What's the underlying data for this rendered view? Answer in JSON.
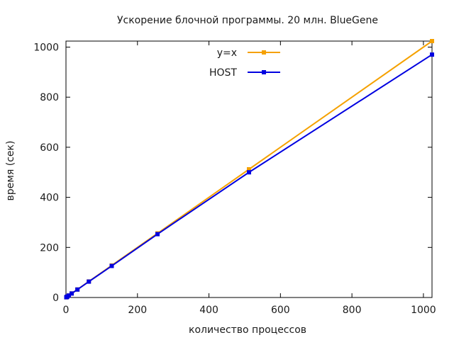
{
  "chart_data": {
    "type": "line",
    "title": "Ускорение блочной программы. 20 млн. BlueGene",
    "xlabel": "количество процессов",
    "ylabel": "время (сек)",
    "xlim": [
      0,
      1024
    ],
    "ylim": [
      0,
      1024
    ],
    "x_ticks": [
      0,
      200,
      400,
      600,
      800,
      1000
    ],
    "y_ticks": [
      0,
      200,
      400,
      600,
      800,
      1000
    ],
    "grid": false,
    "legend_position": "top-center",
    "series": [
      {
        "name": "y=x",
        "color": "#f5a100",
        "marker": "square",
        "points": [
          [
            1,
            1
          ],
          [
            2,
            2
          ],
          [
            4,
            4
          ],
          [
            8,
            8
          ],
          [
            16,
            16
          ],
          [
            32,
            32
          ],
          [
            64,
            64
          ],
          [
            128,
            128
          ],
          [
            256,
            256
          ],
          [
            512,
            512
          ],
          [
            1024,
            1024
          ]
        ]
      },
      {
        "name": "HOST",
        "color": "#0000e0",
        "marker": "square",
        "points": [
          [
            1,
            1
          ],
          [
            2,
            2
          ],
          [
            4,
            4
          ],
          [
            8,
            8
          ],
          [
            16,
            16
          ],
          [
            32,
            31.8
          ],
          [
            64,
            63.5
          ],
          [
            128,
            126
          ],
          [
            256,
            253
          ],
          [
            512,
            500
          ],
          [
            1024,
            970
          ]
        ]
      }
    ]
  }
}
